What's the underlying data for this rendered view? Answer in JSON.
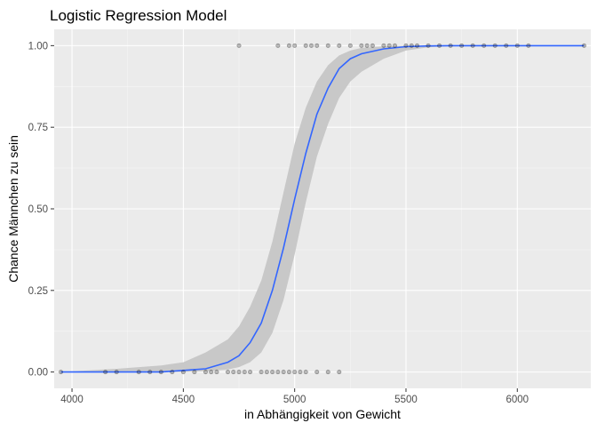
{
  "chart_data": {
    "type": "scatter",
    "title": "Logistic Regression Model",
    "xlabel": "in Abhängigkeit von Gewicht",
    "ylabel": "Chance Männchen zu sein",
    "xlim": [
      3920,
      6330
    ],
    "ylim": [
      -0.05,
      1.05
    ],
    "x_ticks": [
      4000,
      4500,
      5000,
      5500,
      6000
    ],
    "y_ticks": [
      0.0,
      0.25,
      0.5,
      0.75,
      1.0
    ],
    "x_tick_labels": [
      "4000",
      "4500",
      "5000",
      "5500",
      "6000"
    ],
    "y_tick_labels": [
      "0.00",
      "0.25",
      "0.50",
      "0.75",
      "1.00"
    ],
    "grid": true,
    "points_y0": [
      3950,
      4150,
      4200,
      4300,
      4350,
      4400,
      4450,
      4500,
      4550,
      4600,
      4625,
      4650,
      4700,
      4725,
      4750,
      4775,
      4800,
      4850,
      4875,
      4900,
      4925,
      4950,
      4975,
      5000,
      5025,
      5050,
      5100,
      5150,
      5200
    ],
    "points_y1": [
      4750,
      4925,
      4975,
      5000,
      5050,
      5075,
      5100,
      5150,
      5200,
      5250,
      5300,
      5325,
      5350,
      5400,
      5425,
      5450,
      5500,
      5525,
      5550,
      5600,
      5650,
      5700,
      5750,
      5800,
      5850,
      5900,
      5950,
      6000,
      6050,
      6300
    ],
    "fit_line": {
      "x": [
        3950,
        4200,
        4400,
        4500,
        4600,
        4700,
        4750,
        4800,
        4850,
        4900,
        4950,
        5000,
        5050,
        5100,
        5150,
        5200,
        5250,
        5300,
        5400,
        5500,
        5600,
        5700,
        5800,
        6000,
        6300
      ],
      "y": [
        0.0,
        0.0,
        0.0,
        0.005,
        0.01,
        0.03,
        0.05,
        0.09,
        0.15,
        0.25,
        0.38,
        0.53,
        0.67,
        0.79,
        0.87,
        0.93,
        0.96,
        0.975,
        0.99,
        0.997,
        0.999,
        1.0,
        1.0,
        1.0,
        1.0
      ]
    },
    "ci_band": {
      "x": [
        3950,
        4200,
        4400,
        4500,
        4600,
        4700,
        4750,
        4800,
        4850,
        4900,
        4950,
        5000,
        5050,
        5100,
        5150,
        5200,
        5250,
        5300,
        5400,
        5500,
        5600,
        5700,
        5800,
        6000,
        6300
      ],
      "lower": [
        0.0,
        0.0,
        0.0,
        0.0,
        0.002,
        0.008,
        0.015,
        0.03,
        0.06,
        0.12,
        0.22,
        0.36,
        0.52,
        0.66,
        0.76,
        0.84,
        0.89,
        0.92,
        0.96,
        0.985,
        0.995,
        0.999,
        1.0,
        1.0,
        1.0
      ],
      "upper": [
        0.0,
        0.01,
        0.02,
        0.03,
        0.06,
        0.1,
        0.14,
        0.2,
        0.28,
        0.4,
        0.55,
        0.7,
        0.81,
        0.89,
        0.94,
        0.97,
        0.985,
        0.993,
        0.998,
        1.0,
        1.0,
        1.0,
        1.0,
        1.0,
        1.0
      ]
    },
    "colors": {
      "panel": "#ebebeb",
      "grid_major": "#ffffff",
      "ci": "#c8c8c8",
      "line": "#3366ff",
      "point": "#000000"
    }
  }
}
